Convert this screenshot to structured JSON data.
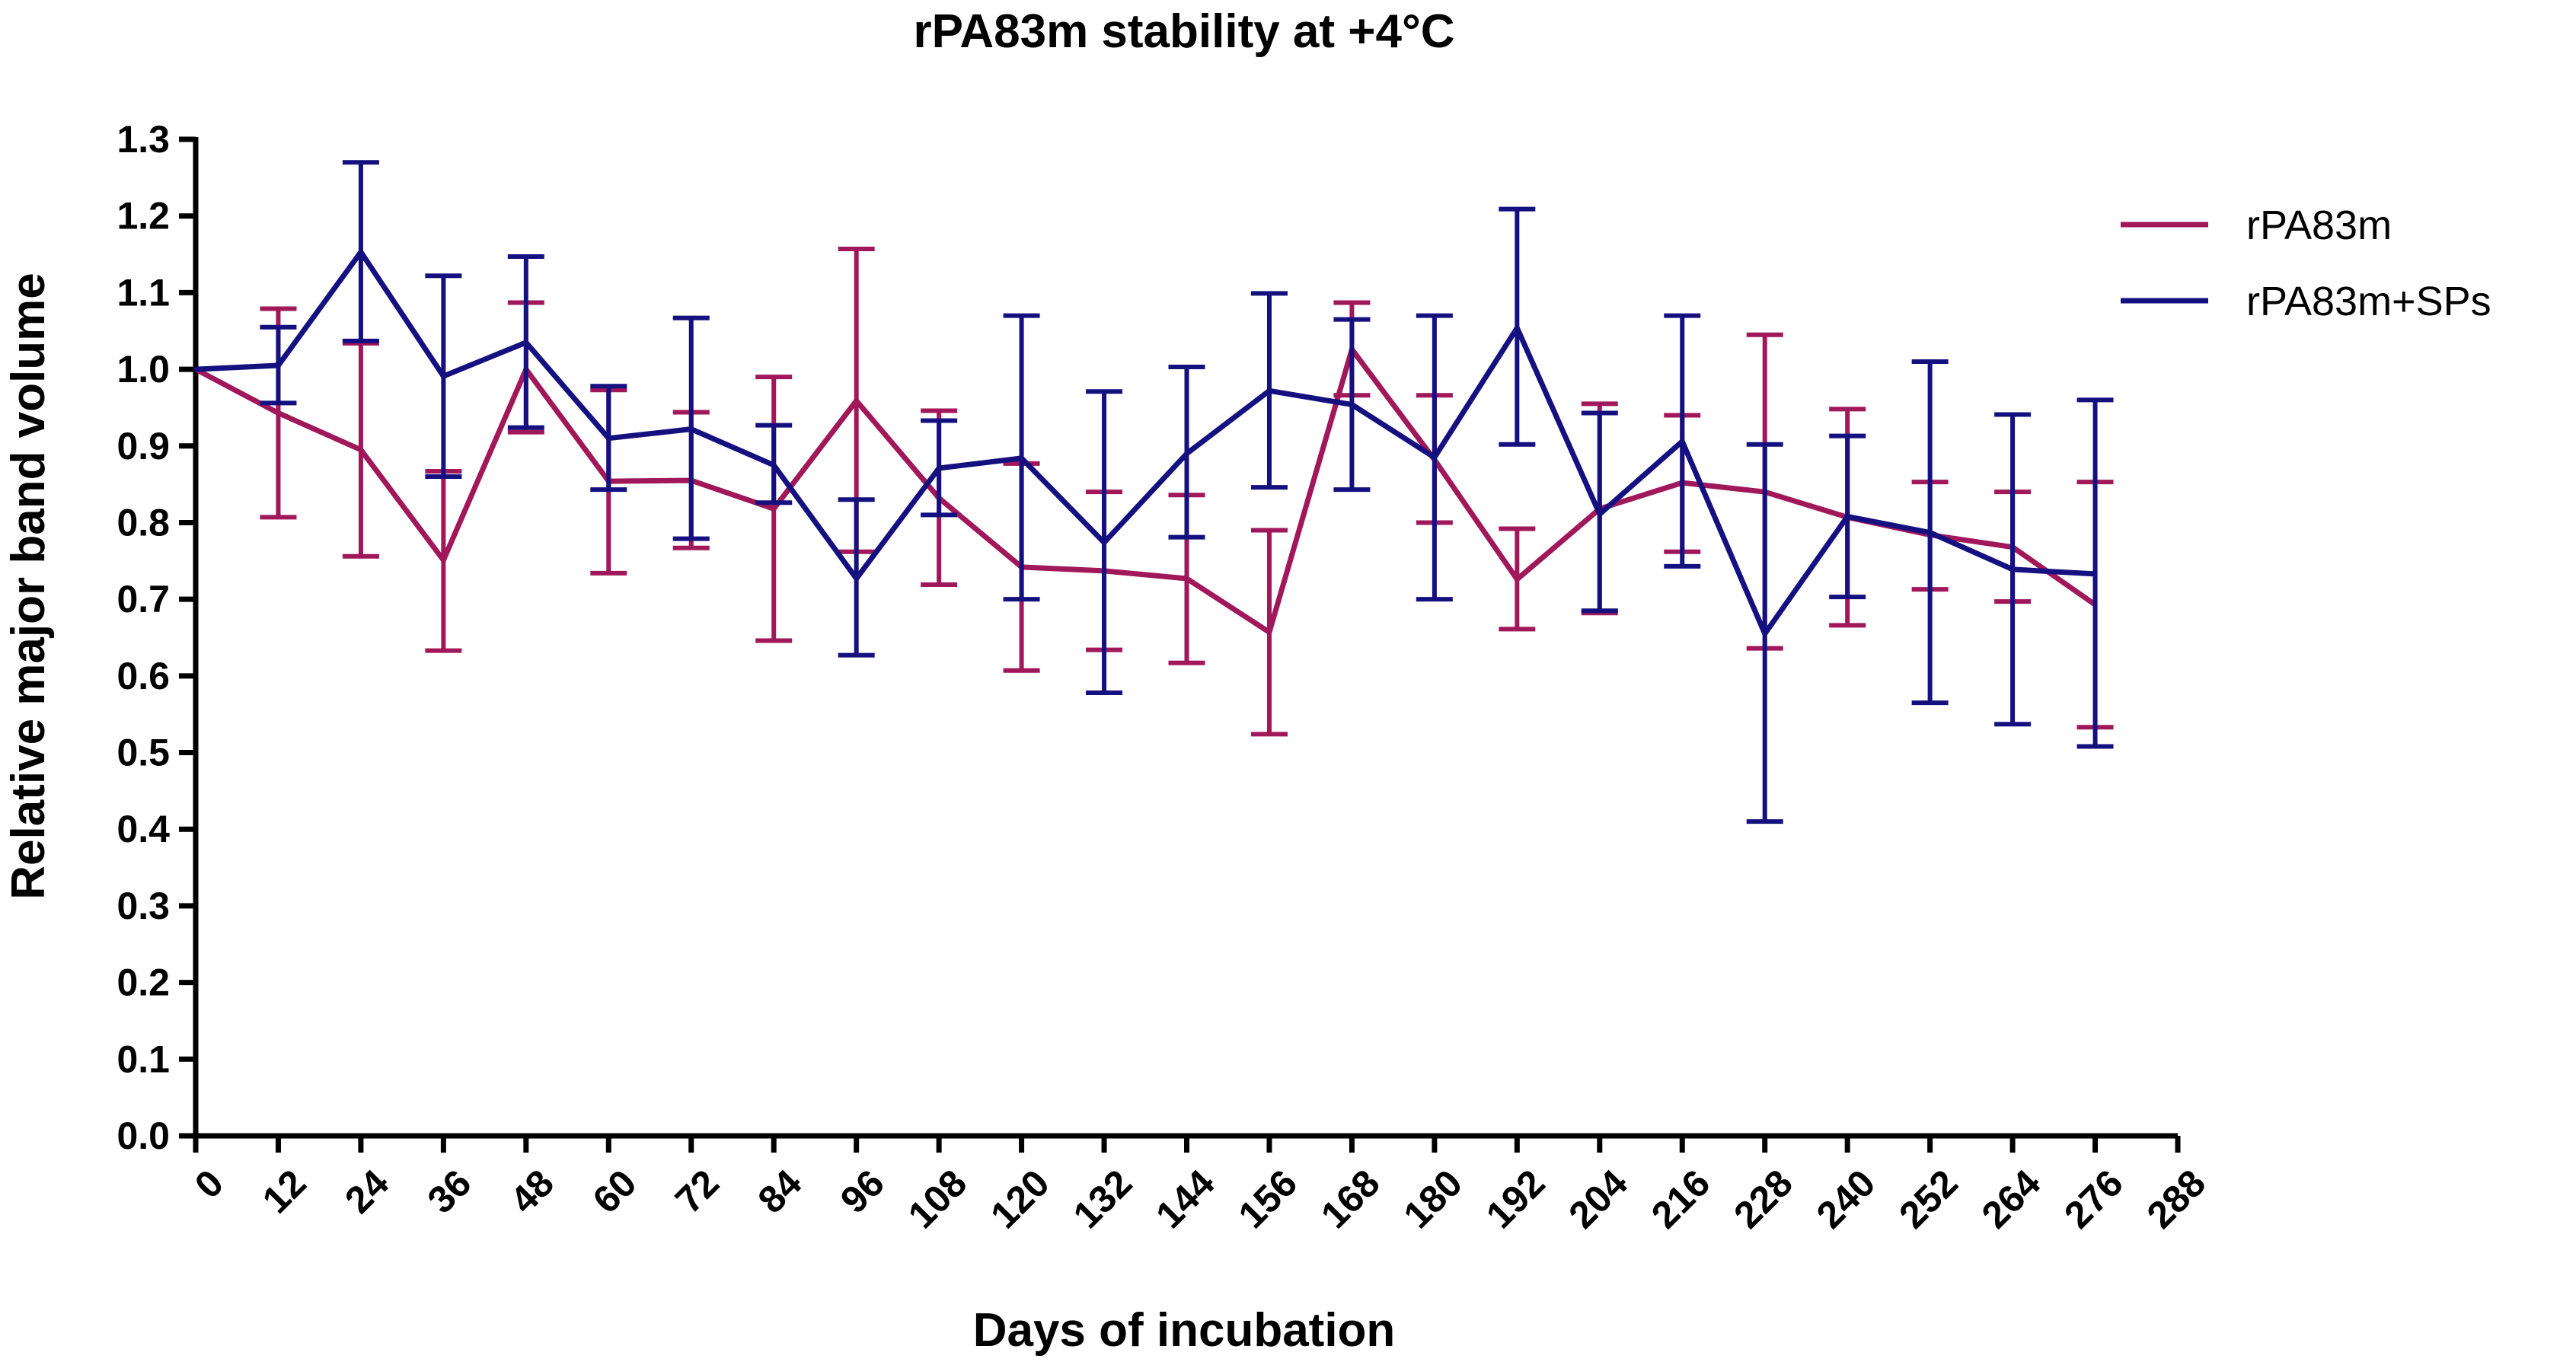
{
  "chart_data": {
    "type": "line",
    "title": "rPA83m stability at +4°C",
    "xlabel": "Days of incubation",
    "ylabel": "Relative major band volume",
    "xlim": [
      0,
      288
    ],
    "ylim": [
      0,
      1.3
    ],
    "xticks": [
      "0",
      "12",
      "24",
      "36",
      "48",
      "60",
      "72",
      "84",
      "96",
      "108",
      "120",
      "132",
      "144",
      "156",
      "168",
      "180",
      "192",
      "204",
      "216",
      "228",
      "240",
      "252",
      "264",
      "276",
      "288"
    ],
    "yticks": [
      "0.0",
      "0.1",
      "0.2",
      "0.3",
      "0.4",
      "0.5",
      "0.6",
      "0.7",
      "0.8",
      "0.9",
      "1.0",
      "1.1",
      "1.2",
      "1.3"
    ],
    "x": [
      0,
      12,
      24,
      36,
      48,
      60,
      72,
      84,
      96,
      108,
      120,
      132,
      144,
      156,
      168,
      180,
      192,
      204,
      216,
      228,
      240,
      252,
      264,
      276
    ],
    "legend_position": "top-right",
    "grid": false,
    "series": [
      {
        "name": "rPA83m",
        "color": "#A0175A",
        "values": [
          1.0,
          0.943,
          0.895,
          0.751,
          1.0,
          0.854,
          0.855,
          0.818,
          0.959,
          0.832,
          0.742,
          0.737,
          0.727,
          0.657,
          1.026,
          0.882,
          0.726,
          0.818,
          0.852,
          0.84,
          0.807,
          0.784,
          0.768,
          0.693
        ],
        "err_high": [
          1.0,
          1.079,
          1.034,
          0.867,
          1.087,
          0.973,
          0.944,
          0.99,
          1.157,
          0.946,
          0.877,
          0.84,
          0.836,
          0.79,
          1.087,
          0.966,
          0.792,
          0.955,
          0.94,
          1.045,
          0.948,
          0.853,
          0.84,
          0.853
        ],
        "err_low": [
          1.0,
          0.807,
          0.756,
          0.633,
          0.918,
          0.734,
          0.767,
          0.646,
          0.762,
          0.719,
          0.607,
          0.634,
          0.617,
          0.524,
          0.966,
          0.8,
          0.661,
          0.682,
          0.762,
          0.636,
          0.666,
          0.713,
          0.697,
          0.533
        ]
      },
      {
        "name": "rPA83m+SPs",
        "color": "#15107F",
        "values": [
          1.0,
          1.005,
          1.153,
          0.991,
          1.035,
          0.91,
          0.922,
          0.875,
          0.727,
          0.871,
          0.884,
          0.774,
          0.89,
          0.972,
          0.954,
          0.885,
          1.054,
          0.811,
          0.906,
          0.655,
          0.808,
          0.787,
          0.739,
          0.733
        ],
        "err_high": [
          1.0,
          1.055,
          1.27,
          1.122,
          1.147,
          0.978,
          1.067,
          0.927,
          0.83,
          0.933,
          1.07,
          0.971,
          1.003,
          1.099,
          1.065,
          1.07,
          1.209,
          0.943,
          1.07,
          0.902,
          0.913,
          1.01,
          0.941,
          0.96
        ],
        "err_low": [
          1.0,
          0.956,
          1.037,
          0.86,
          0.924,
          0.843,
          0.779,
          0.826,
          0.627,
          0.81,
          0.7,
          0.578,
          0.781,
          0.846,
          0.843,
          0.7,
          0.902,
          0.685,
          0.743,
          0.41,
          0.703,
          0.565,
          0.537,
          0.508
        ]
      }
    ]
  }
}
